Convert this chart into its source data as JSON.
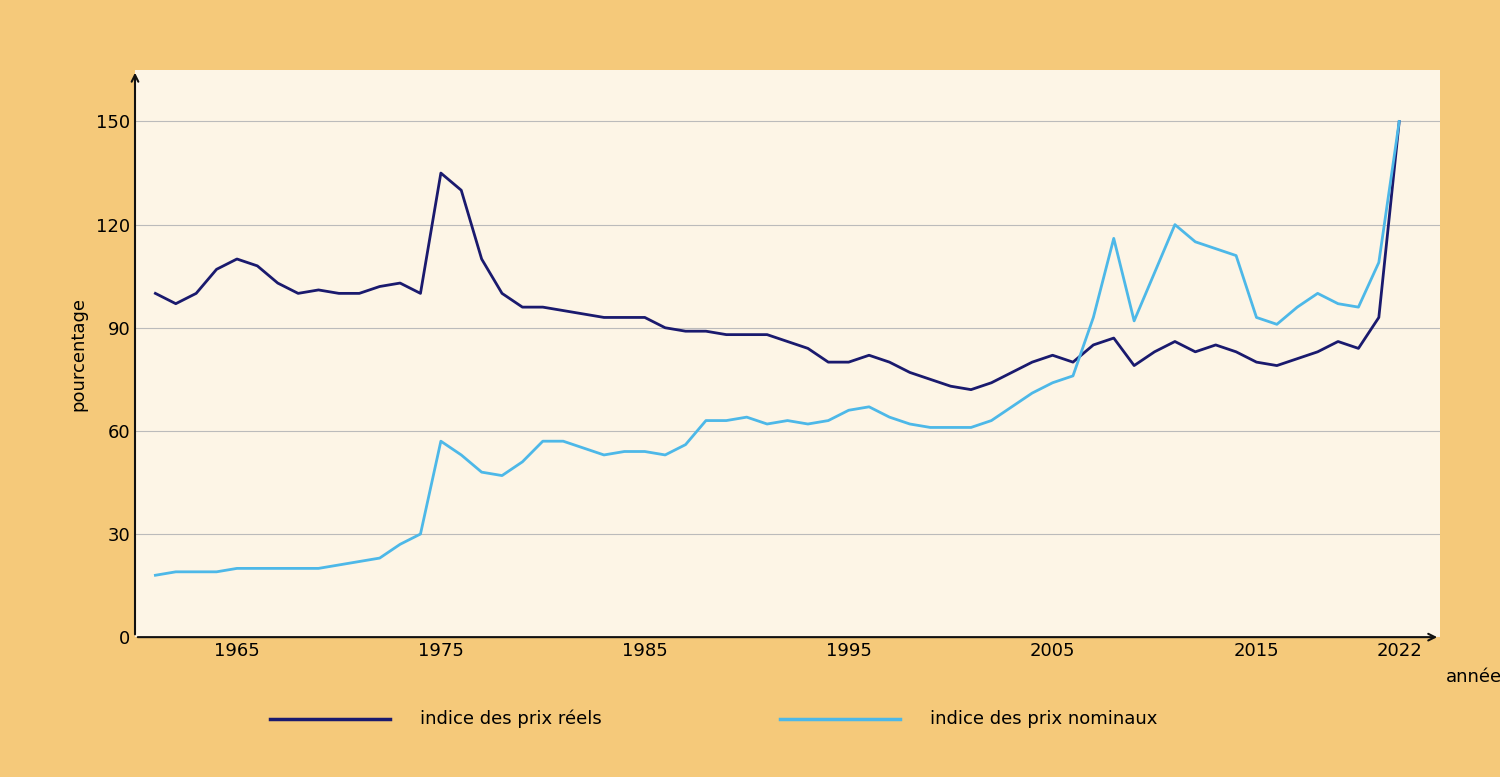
{
  "years": [
    1961,
    1962,
    1963,
    1964,
    1965,
    1966,
    1967,
    1968,
    1969,
    1970,
    1971,
    1972,
    1973,
    1974,
    1975,
    1976,
    1977,
    1978,
    1979,
    1980,
    1981,
    1982,
    1983,
    1984,
    1985,
    1986,
    1987,
    1988,
    1989,
    1990,
    1991,
    1992,
    1993,
    1994,
    1995,
    1996,
    1997,
    1998,
    1999,
    2000,
    2001,
    2002,
    2003,
    2004,
    2005,
    2006,
    2007,
    2008,
    2009,
    2010,
    2011,
    2012,
    2013,
    2014,
    2015,
    2016,
    2017,
    2018,
    2019,
    2020,
    2021,
    2022
  ],
  "real": [
    100,
    97,
    100,
    107,
    110,
    108,
    103,
    100,
    101,
    100,
    100,
    102,
    103,
    100,
    135,
    130,
    110,
    100,
    96,
    96,
    95,
    94,
    93,
    93,
    93,
    90,
    89,
    89,
    88,
    88,
    88,
    86,
    84,
    80,
    80,
    82,
    80,
    77,
    75,
    73,
    72,
    74,
    77,
    80,
    82,
    80,
    85,
    87,
    79,
    83,
    86,
    83,
    85,
    83,
    80,
    79,
    81,
    83,
    86,
    84,
    93,
    150
  ],
  "nominal": [
    18,
    19,
    19,
    19,
    20,
    20,
    20,
    20,
    20,
    21,
    22,
    23,
    27,
    30,
    57,
    53,
    48,
    47,
    51,
    57,
    57,
    55,
    53,
    54,
    54,
    53,
    56,
    63,
    63,
    64,
    62,
    63,
    62,
    63,
    66,
    67,
    64,
    62,
    61,
    61,
    61,
    63,
    67,
    71,
    74,
    76,
    93,
    116,
    92,
    106,
    120,
    115,
    113,
    111,
    93,
    91,
    96,
    100,
    97,
    96,
    109,
    150
  ],
  "outer_bg": "#F5C97A",
  "plot_bg": "#FDF5E6",
  "legend_bg": "#FFFFFF",
  "real_color": "#1a1a6e",
  "nominal_color": "#4db8e8",
  "grid_color": "#bbbbbb",
  "axis_color": "#111111",
  "ylabel": "pourcentage",
  "xlabel": "années",
  "yticks": [
    0,
    30,
    60,
    90,
    120,
    150
  ],
  "xticks": [
    1965,
    1975,
    1985,
    1995,
    2005,
    2015,
    2022
  ],
  "ylim": [
    0,
    165
  ],
  "xlim": [
    1960,
    2024
  ],
  "legend_real": "indice des prix réels",
  "legend_nominal": "indice des prix nominaux",
  "real_lw": 2.0,
  "nominal_lw": 2.0,
  "tick_fontsize": 13,
  "label_fontsize": 13,
  "legend_fontsize": 13
}
